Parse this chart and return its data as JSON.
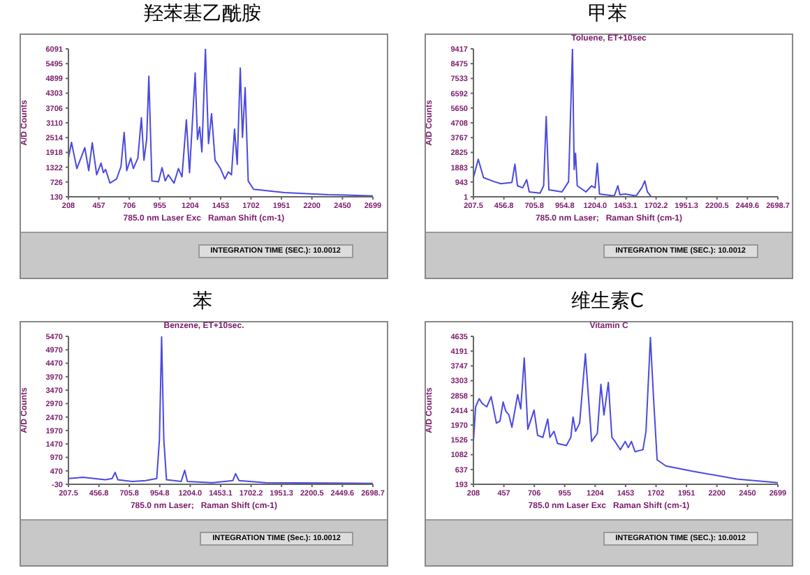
{
  "chart_data": [
    {
      "type": "line",
      "title": "羟苯基乙酰胺",
      "xlabel": "785.0 nm Laser Exc   Raman Shift (cm-1)",
      "ylabel": "A/D Counts",
      "color": "#4a4ae0",
      "grid": false,
      "legend": false,
      "marker": "none",
      "xlim": [
        208,
        2699
      ],
      "xticks": [
        208,
        457,
        706,
        955,
        1204,
        1453,
        1702,
        1951,
        2200,
        2450,
        2699
      ],
      "ylim": [
        130,
        6091
      ],
      "yticks": [
        130,
        726,
        1322,
        1918,
        2514,
        3110,
        3706,
        4303,
        4899,
        5495,
        6091
      ],
      "x": [
        208,
        233,
        277,
        342,
        374,
        403,
        439,
        475,
        494,
        512,
        548,
        602,
        638,
        664,
        685,
        718,
        739,
        776,
        805,
        826,
        848,
        866,
        891,
        945,
        974,
        1000,
        1025,
        1072,
        1108,
        1137,
        1173,
        1199,
        1245,
        1264,
        1282,
        1300,
        1329,
        1354,
        1379,
        1408,
        1452,
        1488,
        1517,
        1542,
        1567,
        1589,
        1614,
        1632,
        1654,
        1679,
        1723,
        1976,
        2337,
        2482,
        2699
      ],
      "values": [
        1687,
        2323,
        1268,
        2106,
        1185,
        2306,
        1017,
        1486,
        1101,
        1235,
        682,
        850,
        1352,
        2725,
        1185,
        1687,
        1268,
        1687,
        3311,
        1603,
        2440,
        4985,
        766,
        733,
        1302,
        766,
        1017,
        682,
        1268,
        934,
        3227,
        1101,
        5119,
        2440,
        2942,
        1938,
        6073,
        2273,
        3478,
        1603,
        1268,
        850,
        1134,
        1017,
        2859,
        1436,
        5320,
        2524,
        4533,
        766,
        431,
        297,
        214,
        197,
        163
      ],
      "annotations": [
        "INTEGRATION TIME (SEC.):  10.0012"
      ]
    },
    {
      "type": "line",
      "title": "甲苯",
      "subtitle": "Toluene, ET+10sec",
      "xlabel": "785.0 nm Laser;   Raman Shift (cm-1)",
      "ylabel": "A/D Counts",
      "color": "#4a4ae0",
      "grid": false,
      "legend": false,
      "marker": "none",
      "xlim": [
        207.5,
        2698.7
      ],
      "xticks": [
        207.5,
        456.8,
        705.8,
        954.8,
        {
          "value": 1204,
          "label": "1204.0"
        },
        1453.1,
        1702.2,
        1951.3,
        2200.5,
        2449.6,
        2698.7
      ],
      "ylim": [
        1,
        9417
      ],
      "yticks": [
        1,
        943,
        1883,
        2825,
        3767,
        4708,
        5650,
        6592,
        7533,
        8475,
        9417
      ],
      "x": [
        207.5,
        247,
        290,
        379,
        432,
        522,
        547,
        568,
        611,
        643,
        664,
        753,
        782,
        803,
        825,
        932,
        986,
        1018,
        1032,
        1043,
        1057,
        1128,
        1175,
        1189,
        1203,
        1221,
        1239,
        1360,
        1389,
        1406,
        1449,
        1538,
        1585,
        1610,
        1631,
        1663
      ],
      "values": [
        1220,
        2388,
        1220,
        961,
        831,
        909,
        2076,
        701,
        572,
        1090,
        312,
        234,
        701,
        5111,
        442,
        312,
        961,
        9391,
        1739,
        2777,
        701,
        312,
        701,
        624,
        572,
        2128,
        183,
        53,
        701,
        131,
        183,
        53,
        572,
        1013,
        312,
        1
      ],
      "annotations": [
        "INTEGRATION TIME (SEC.):  10.0012"
      ]
    },
    {
      "type": "line",
      "title": "苯",
      "subtitle": "Benzene, ET+10sec.",
      "xlabel": "785.0 nm Laser;   Raman Shift (cm-1)",
      "ylabel": "A/D Counts",
      "color": "#4a4ae0",
      "grid": false,
      "legend": false,
      "marker": "none",
      "xlim": [
        207.5,
        2698.7
      ],
      "xticks": [
        207.5,
        456.8,
        705.8,
        954.8,
        {
          "value": 1204,
          "label": "1204.0"
        },
        1453.1,
        1702.2,
        1951.3,
        2200.5,
        2449.6,
        2698.7
      ],
      "ylim": [
        -30,
        5470
      ],
      "yticks": [
        -30,
        470,
        970,
        1470,
        1970,
        2470,
        2970,
        3470,
        3970,
        4470,
        4970,
        5470
      ],
      "x": [
        207.5,
        328,
        510,
        565,
        590,
        612,
        729,
        838,
        930,
        952,
        970,
        988,
        1010,
        1130,
        1159,
        1181,
        1385,
        1553,
        1575,
        1604,
        1823,
        2334,
        2698.7
      ],
      "values": [
        183,
        228,
        137,
        183,
        411,
        137,
        76,
        107,
        183,
        1626,
        5450,
        1626,
        137,
        76,
        486,
        76,
        31,
        107,
        365,
        107,
        31,
        16,
        0
      ],
      "annotations": [
        "INTEGRATION TIME (Sec.):  10.0012"
      ]
    },
    {
      "type": "line",
      "title": "维生素C",
      "subtitle": "Vitamin C",
      "xlabel": "785.0 nm Laser Exc   Raman Shift (cm-1)",
      "ylabel": "A/D Counts",
      "color": "#4a4ae0",
      "grid": false,
      "legend": false,
      "marker": "none",
      "xlim": [
        208,
        2699
      ],
      "xticks": [
        208,
        457,
        706,
        955,
        1204,
        1453,
        1702,
        1951,
        2200,
        2450,
        2699
      ],
      "ylim": [
        193,
        4635
      ],
      "yticks": [
        193,
        637,
        1082,
        1526,
        1970,
        2414,
        2858,
        3303,
        3747,
        4191,
        4635
      ],
      "x": [
        208,
        226,
        255,
        280,
        317,
        353,
        396,
        425,
        451,
        472,
        498,
        523,
        570,
        595,
        624,
        653,
        704,
        733,
        776,
        816,
        834,
        867,
        896,
        968,
        1005,
        1023,
        1044,
        1077,
        1124,
        1175,
        1222,
        1251,
        1276,
        1312,
        1341,
        1367,
        1410,
        1450,
        1475,
        1501,
        1530,
        1595,
        1620,
        1656,
        1682,
        1711,
        1783,
        2000,
        2362,
        2699
      ],
      "values": [
        1478,
        2519,
        2763,
        2617,
        2519,
        2825,
        2029,
        2090,
        2665,
        2396,
        2274,
        1907,
        2886,
        2457,
        3987,
        1845,
        2421,
        1662,
        1601,
        2151,
        1601,
        1784,
        1417,
        1356,
        1601,
        2212,
        1784,
        2029,
        4110,
        1478,
        1723,
        3192,
        2274,
        3253,
        1601,
        1478,
        1233,
        1478,
        1295,
        1478,
        1172,
        1233,
        1784,
        4599,
        2763,
        927,
        744,
        585,
        352,
        242
      ],
      "annotations": [
        "INTEGRATION TIME (SEC.):  10.0012"
      ]
    }
  ]
}
